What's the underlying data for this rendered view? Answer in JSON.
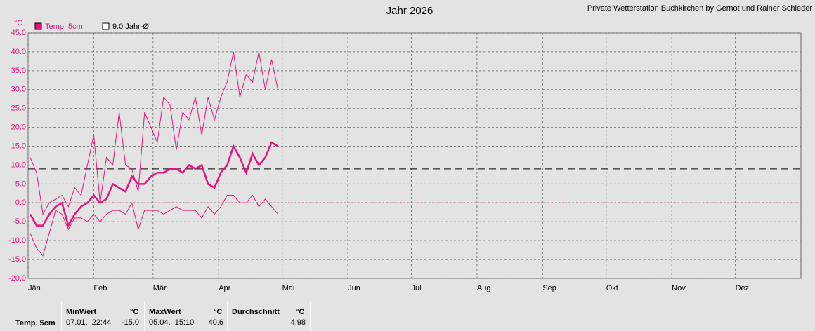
{
  "chart_data": {
    "type": "line",
    "title": "Jahr 2026",
    "subtitle": "Private Wetterstation Buchkirchen by Gernot und Rainer Schieder",
    "ylabel": "°C",
    "legend": [
      {
        "label": "Temp. 5cm",
        "color": "#e8127c"
      },
      {
        "label": "9.0 Jahr-Ø",
        "color": "#ffffff"
      }
    ],
    "x": [
      1,
      4,
      7,
      10,
      13,
      16,
      19,
      22,
      25,
      28,
      31,
      34,
      37,
      40,
      43,
      46,
      49,
      52,
      55,
      58,
      61,
      64,
      67,
      70,
      73,
      76,
      79,
      82,
      85,
      88,
      91,
      94,
      97,
      100,
      103,
      106,
      109,
      112,
      115,
      118
    ],
    "series": [
      {
        "color": "#e8127c",
        "width": 1,
        "values": [
          12,
          8,
          -3,
          0,
          1,
          2,
          -1,
          4,
          2,
          10,
          18,
          0,
          12,
          10,
          24,
          10,
          9,
          3,
          24,
          20,
          16,
          28,
          26,
          14,
          24,
          22,
          28,
          18,
          28,
          22,
          28,
          32,
          40,
          28,
          34,
          32,
          40,
          30,
          38,
          30
        ]
      },
      {
        "color": "#e8127c",
        "width": 2.5,
        "values": [
          -3,
          -6,
          -6,
          -3,
          -1,
          0,
          -6,
          -3,
          -1,
          0,
          2,
          0,
          1,
          5,
          4,
          3,
          7,
          5,
          5,
          7,
          8,
          8,
          9,
          9,
          8,
          10,
          9,
          10,
          5,
          4,
          8,
          10,
          15,
          12,
          8,
          13,
          10,
          12,
          16,
          15
        ]
      },
      {
        "color": "#e8127c",
        "width": 1,
        "values": [
          -8,
          -12,
          -14,
          -8,
          -2,
          -3,
          -7,
          -4,
          -4,
          -5,
          -3,
          -5,
          -3,
          -2,
          -2,
          -3,
          0,
          -7,
          -2,
          -2,
          -2,
          -3,
          -2,
          -1,
          -2,
          -2,
          -2,
          -4,
          -1,
          -3,
          -1,
          2,
          2,
          0,
          0,
          2,
          -1,
          1,
          -1,
          -3
        ]
      }
    ],
    "ref_lines": [
      {
        "value": 9.0,
        "color": "#000000",
        "dash": "10,6"
      },
      {
        "value": 4.98,
        "color": "#e8127c",
        "dash": "10,6"
      },
      {
        "value": 0,
        "color": "#cc0000",
        "dash": "2,3"
      }
    ],
    "xlim": [
      0,
      365
    ],
    "xticks": [
      {
        "value": 0,
        "label": "Jän"
      },
      {
        "value": 31,
        "label": "Feb"
      },
      {
        "value": 59,
        "label": "Mär"
      },
      {
        "value": 90,
        "label": "Apr"
      },
      {
        "value": 120,
        "label": "Mai"
      },
      {
        "value": 151,
        "label": "Jun"
      },
      {
        "value": 181,
        "label": "Jul"
      },
      {
        "value": 212,
        "label": "Aug"
      },
      {
        "value": 243,
        "label": "Sep"
      },
      {
        "value": 273,
        "label": "Okt"
      },
      {
        "value": 304,
        "label": "Nov"
      },
      {
        "value": 334,
        "label": "Dez"
      }
    ],
    "ylim": [
      -20,
      45
    ],
    "yticks": [
      {
        "value": -20,
        "label": "-20.0"
      },
      {
        "value": -15,
        "label": "-15.0"
      },
      {
        "value": -10,
        "label": "-10.0"
      },
      {
        "value": -5,
        "label": "-5.0"
      },
      {
        "value": 0,
        "label": "0.0"
      },
      {
        "value": 5,
        "label": "5.0"
      },
      {
        "value": 10,
        "label": "10.0"
      },
      {
        "value": 15,
        "label": "15.0"
      },
      {
        "value": 20,
        "label": "20.0"
      },
      {
        "value": 25,
        "label": "25.0"
      },
      {
        "value": 30,
        "label": "30.0"
      },
      {
        "value": 35,
        "label": "35.0"
      },
      {
        "value": 40,
        "label": "40.0"
      },
      {
        "value": 45,
        "label": "45.0"
      }
    ],
    "grid": true
  },
  "stats": {
    "row_label": "Temp. 5cm",
    "min": {
      "header": "MinWert",
      "unit": "°C",
      "time": "07.01.  22:44",
      "value": "-15.0"
    },
    "max": {
      "header": "MaxWert",
      "unit": "°C",
      "time": "05.04.  15:10",
      "value": "40.6"
    },
    "avg": {
      "header": "Durchschnitt",
      "unit": "°C",
      "value": "4.98"
    }
  }
}
